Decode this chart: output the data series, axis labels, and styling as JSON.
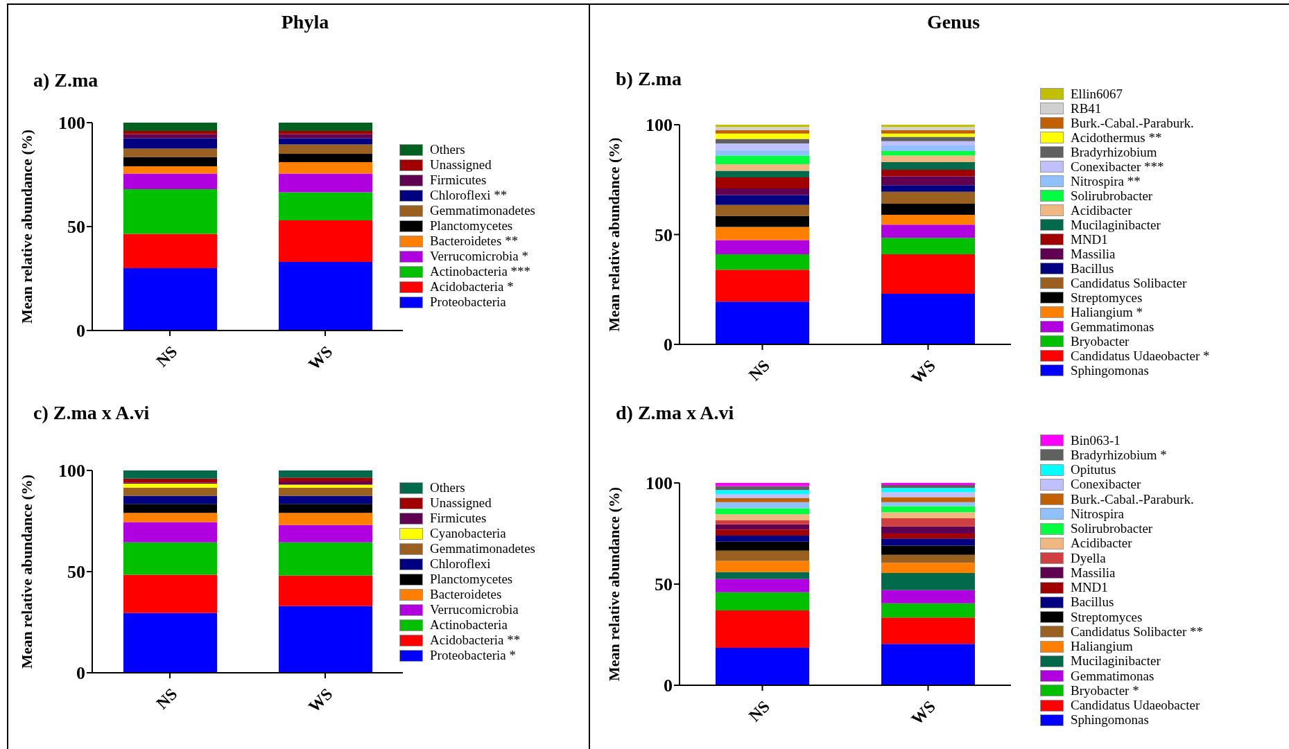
{
  "chart_data": [
    {
      "type": "bar",
      "stacked": true,
      "title": "a) Z.ma",
      "annotations": [
        "Phyla"
      ],
      "ylabel": "Mean relative abundance (%)",
      "categories": [
        "NS",
        "WS"
      ],
      "ylim": [
        0,
        100
      ],
      "yticks": [
        0,
        50,
        100
      ],
      "legend": "right",
      "series": [
        {
          "name": "Proteobacteria",
          "color": "#0000ff",
          "values": [
            30,
            33
          ]
        },
        {
          "name": "Acidobacteria *",
          "color": "#ff0000",
          "values": [
            16.5,
            20
          ]
        },
        {
          "name": "Actinobacteria ***",
          "color": "#00c000",
          "values": [
            21.5,
            13.5
          ]
        },
        {
          "name": "Verrucomicrobia *",
          "color": "#b000e0",
          "values": [
            7.5,
            9
          ]
        },
        {
          "name": "Bacteroidetes **",
          "color": "#ff8000",
          "values": [
            3.5,
            5.5
          ]
        },
        {
          "name": "Planctomycetes",
          "color": "#000000",
          "values": [
            4.5,
            4
          ]
        },
        {
          "name": "Gemmatimonadetes",
          "color": "#996020",
          "values": [
            4,
            4.5
          ]
        },
        {
          "name": "Chloroflexi **",
          "color": "#000080",
          "values": [
            5,
            3
          ]
        },
        {
          "name": "Firmicutes",
          "color": "#600050",
          "values": [
            2,
            2
          ]
        },
        {
          "name": "Unassigned",
          "color": "#a00000",
          "values": [
            1.5,
            1.5
          ]
        },
        {
          "name": "Others",
          "color": "#006020",
          "values": [
            4,
            4
          ]
        }
      ]
    },
    {
      "type": "bar",
      "stacked": true,
      "title": "b) Z.ma",
      "annotations": [
        "Genus"
      ],
      "ylabel": "Mean relative abundance (%)",
      "categories": [
        "NS",
        "WS"
      ],
      "ylim": [
        0,
        100
      ],
      "yticks": [
        0,
        50,
        100
      ],
      "legend": "right",
      "series": [
        {
          "name": "Sphingomonas",
          "color": "#0000ff",
          "values": [
            19.5,
            23
          ]
        },
        {
          "name": "Candidatus Udaeobacter *",
          "color": "#ff0000",
          "values": [
            14.5,
            18
          ]
        },
        {
          "name": "Bryobacter",
          "color": "#00c000",
          "values": [
            7,
            7.5
          ]
        },
        {
          "name": "Gemmatimonas",
          "color": "#b000e0",
          "values": [
            6.5,
            6
          ]
        },
        {
          "name": "Haliangium *",
          "color": "#ff8000",
          "values": [
            6,
            4.5
          ]
        },
        {
          "name": "Streptomyces",
          "color": "#000000",
          "values": [
            5,
            5
          ]
        },
        {
          "name": "Candidatus Solibacter",
          "color": "#996020",
          "values": [
            5,
            5.5
          ]
        },
        {
          "name": "Bacillus",
          "color": "#000080",
          "values": [
            4.5,
            3
          ]
        },
        {
          "name": "Massilia",
          "color": "#600050",
          "values": [
            3,
            4
          ]
        },
        {
          "name": "MND1",
          "color": "#a00000",
          "values": [
            5,
            3
          ]
        },
        {
          "name": "Mucilaginibacter",
          "color": "#006a4a",
          "values": [
            3,
            3.5
          ]
        },
        {
          "name": "Acidibacter",
          "color": "#f0b880",
          "values": [
            3,
            3
          ]
        },
        {
          "name": "Solirubrobacter",
          "color": "#00ff40",
          "values": [
            4,
            2
          ]
        },
        {
          "name": "Nitrospira **",
          "color": "#90c0ff",
          "values": [
            2.5,
            2.5
          ]
        },
        {
          "name": "Conexibacter ***",
          "color": "#c0c0ff",
          "values": [
            3,
            2
          ]
        },
        {
          "name": "Bradyrhizobium",
          "color": "#606060",
          "values": [
            2,
            2
          ]
        },
        {
          "name": "Acidothermus **",
          "color": "#ffff00",
          "values": [
            2.5,
            1.5
          ]
        },
        {
          "name": "Burk.-Cabal.-Paraburk.",
          "color": "#c06000",
          "values": [
            1.5,
            1.5
          ]
        },
        {
          "name": "RB41",
          "color": "#d0d0d0",
          "values": [
            1.5,
            1.5
          ]
        },
        {
          "name": "Ellin6067",
          "color": "#c0c000",
          "values": [
            1,
            1
          ]
        }
      ]
    },
    {
      "type": "bar",
      "stacked": true,
      "title": "c) Z.ma x A.vi",
      "ylabel": "Mean relative abundance (%)",
      "categories": [
        "NS",
        "WS"
      ],
      "ylim": [
        0,
        100
      ],
      "yticks": [
        0,
        50,
        100
      ],
      "legend": "right",
      "series": [
        {
          "name": "Proteobacteria *",
          "color": "#0000ff",
          "values": [
            29.5,
            33
          ]
        },
        {
          "name": "Acidobacteria **",
          "color": "#ff0000",
          "values": [
            19,
            15
          ]
        },
        {
          "name": "Actinobacteria",
          "color": "#00c000",
          "values": [
            16,
            16.5
          ]
        },
        {
          "name": "Verrucomicrobia",
          "color": "#b000e0",
          "values": [
            10,
            8.5
          ]
        },
        {
          "name": "Bacteroidetes",
          "color": "#ff8000",
          "values": [
            4.5,
            6
          ]
        },
        {
          "name": "Planctomycetes",
          "color": "#000000",
          "values": [
            4.5,
            4.5
          ]
        },
        {
          "name": "Chloroflexi",
          "color": "#000080",
          "values": [
            4,
            4
          ]
        },
        {
          "name": "Gemmatimonadetes",
          "color": "#996020",
          "values": [
            4,
            4
          ]
        },
        {
          "name": "Cyanobacteria",
          "color": "#ffff00",
          "values": [
            2,
            1.5
          ]
        },
        {
          "name": "Firmicutes",
          "color": "#600050",
          "values": [
            0.5,
            1.5
          ]
        },
        {
          "name": "Unassigned",
          "color": "#a00000",
          "values": [
            2,
            2
          ]
        },
        {
          "name": "Others",
          "color": "#006a4a",
          "values": [
            4,
            3.5
          ]
        }
      ]
    },
    {
      "type": "bar",
      "stacked": true,
      "title": "d) Z.ma x A.vi",
      "ylabel": "Mean relative abundance (%)",
      "categories": [
        "NS",
        "WS"
      ],
      "ylim": [
        0,
        100
      ],
      "yticks": [
        0,
        50,
        100
      ],
      "legend": "right",
      "series": [
        {
          "name": "Sphingomonas",
          "color": "#0000ff",
          "values": [
            18.5,
            20.5
          ]
        },
        {
          "name": "Candidatus Udaeobacter",
          "color": "#ff0000",
          "values": [
            18.5,
            13
          ]
        },
        {
          "name": "Bryobacter *",
          "color": "#00c000",
          "values": [
            9,
            7
          ]
        },
        {
          "name": "Gemmatimonas",
          "color": "#b000e0",
          "values": [
            6.5,
            6.5
          ]
        },
        {
          "name": "Mucilaginibacter",
          "color": "#006a4a",
          "values": [
            3.5,
            8.5
          ]
        },
        {
          "name": "Haliangium",
          "color": "#ff8000",
          "values": [
            5.5,
            5
          ]
        },
        {
          "name": "Candidatus Solibacter **",
          "color": "#996020",
          "values": [
            5,
            4
          ]
        },
        {
          "name": "Streptomyces",
          "color": "#000000",
          "values": [
            4.5,
            4.5
          ]
        },
        {
          "name": "Bacillus",
          "color": "#000080",
          "values": [
            3,
            3.5
          ]
        },
        {
          "name": "MND1",
          "color": "#a00000",
          "values": [
            3,
            2.5
          ]
        },
        {
          "name": "Massilia",
          "color": "#600050",
          "values": [
            2.5,
            3.5
          ]
        },
        {
          "name": "Dyella",
          "color": "#d04040",
          "values": [
            2,
            4
          ]
        },
        {
          "name": "Acidibacter",
          "color": "#f0b880",
          "values": [
            3,
            3
          ]
        },
        {
          "name": "Solirubrobacter",
          "color": "#00ff40",
          "values": [
            3,
            3
          ]
        },
        {
          "name": "Nitrospira",
          "color": "#90c0ff",
          "values": [
            3,
            2
          ]
        },
        {
          "name": "Burk.-Cabal.-Paraburk.",
          "color": "#c06000",
          "values": [
            2,
            2.5
          ]
        },
        {
          "name": "Conexibacter",
          "color": "#c0c0ff",
          "values": [
            2,
            2.5
          ]
        },
        {
          "name": "Opitutus",
          "color": "#00ffff",
          "values": [
            2,
            2
          ]
        },
        {
          "name": "Bradyrhizobium *",
          "color": "#606060",
          "values": [
            2,
            1.5
          ]
        },
        {
          "name": "Bin063-1",
          "color": "#ff00ff",
          "values": [
            1.5,
            1
          ]
        }
      ]
    }
  ]
}
